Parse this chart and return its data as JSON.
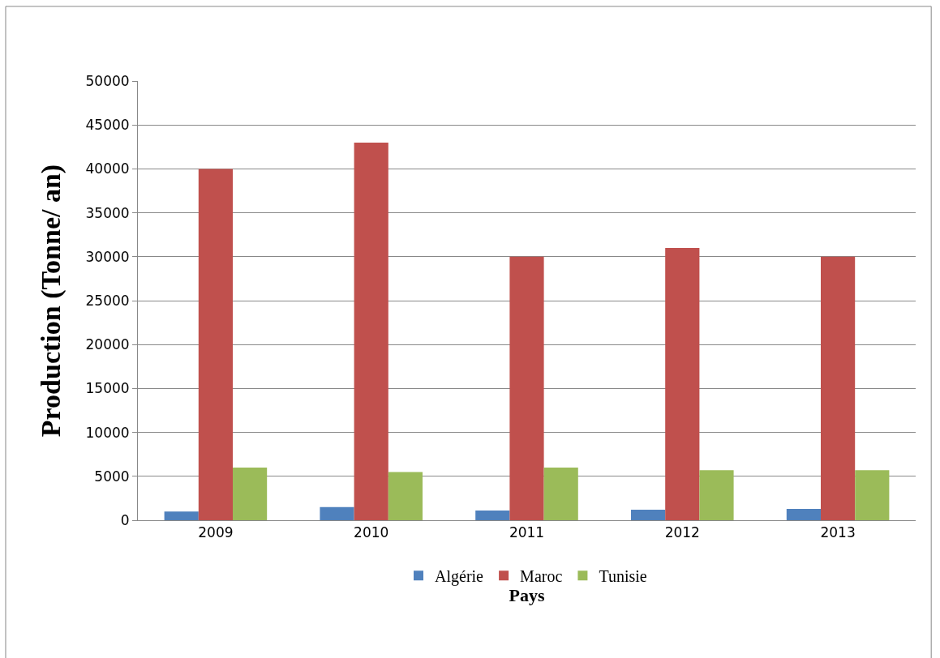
{
  "chart_data": {
    "type": "bar",
    "xlabel": "Pays",
    "ylabel": "Production (Tonne/ an)",
    "categories": [
      "2009",
      "2010",
      "2011",
      "2012",
      "2013"
    ],
    "series": [
      {
        "name": "Algérie",
        "color": "#4f81bd",
        "values": [
          1000,
          1500,
          1100,
          1200,
          1300
        ]
      },
      {
        "name": "Maroc",
        "color": "#c0504d",
        "values": [
          40000,
          43000,
          30000,
          31000,
          30000
        ]
      },
      {
        "name": "Tunisie",
        "color": "#9bbb59",
        "values": [
          6000,
          5500,
          6000,
          5700,
          5700
        ]
      }
    ],
    "ylim": [
      0,
      50000
    ],
    "yticks": [
      0,
      5000,
      10000,
      15000,
      20000,
      25000,
      30000,
      35000,
      40000,
      45000,
      50000
    ],
    "grid": "y",
    "legend": "bottom"
  }
}
